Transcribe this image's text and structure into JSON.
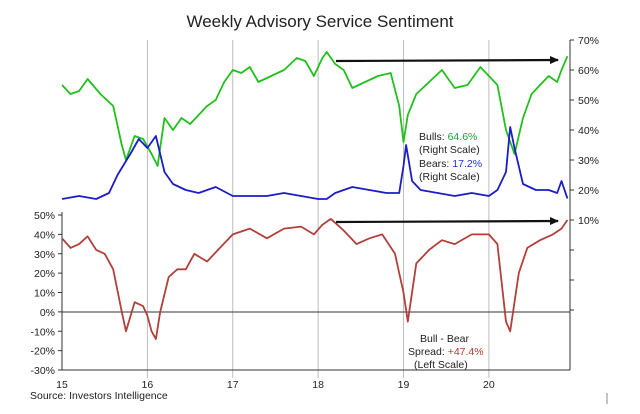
{
  "chart_data": {
    "type": "line",
    "title": "Weekly Advisory Service Sentiment",
    "source": "Source: Investors Intelligence",
    "x_tick_labels": [
      "15",
      "16",
      "17",
      "18",
      "19",
      "20"
    ],
    "x_tick_values": [
      2015,
      2016,
      2017,
      2018,
      2019,
      2020
    ],
    "xlim": [
      2015,
      2020.95
    ],
    "grid": "vertical lines at year boundaries",
    "right_axis": {
      "ylim": [
        -20,
        70
      ],
      "tick_values": [
        10,
        20,
        30,
        40,
        50,
        60,
        70
      ],
      "tick_labels": [
        "10%",
        "20%",
        "30%",
        "40%",
        "50%",
        "60%",
        "70%"
      ]
    },
    "left_axis": {
      "ylim": [
        -30,
        60
      ],
      "tick_values": [
        -30,
        -20,
        -10,
        0,
        10,
        20,
        30,
        40,
        50
      ],
      "tick_labels": [
        "-30%",
        "-20%",
        "-10%",
        "0%",
        "10%",
        "20%",
        "30%",
        "40%",
        "50%"
      ]
    },
    "series": [
      {
        "key": "bulls",
        "axis": "right",
        "color": "#22c01e",
        "x": [
          2015.0,
          2015.1,
          2015.2,
          2015.3,
          2015.45,
          2015.6,
          2015.7,
          2015.75,
          2015.85,
          2015.95,
          2016.05,
          2016.12,
          2016.2,
          2016.3,
          2016.4,
          2016.5,
          2016.6,
          2016.7,
          2016.8,
          2016.9,
          2017.0,
          2017.1,
          2017.2,
          2017.3,
          2017.45,
          2017.6,
          2017.75,
          2017.85,
          2017.95,
          2018.05,
          2018.1,
          2018.2,
          2018.3,
          2018.4,
          2018.55,
          2018.7,
          2018.85,
          2018.95,
          2019.0,
          2019.05,
          2019.15,
          2019.3,
          2019.45,
          2019.6,
          2019.75,
          2019.9,
          2020.0,
          2020.1,
          2020.2,
          2020.3,
          2020.4,
          2020.5,
          2020.6,
          2020.7,
          2020.8,
          2020.85,
          2020.92
        ],
        "values": [
          55,
          52,
          53,
          57,
          52,
          48,
          35,
          30,
          38,
          37,
          32,
          28,
          44,
          40,
          44,
          42,
          45,
          48,
          50,
          56,
          60,
          59,
          61,
          56,
          58,
          60,
          64,
          63,
          58,
          64,
          66,
          62,
          60,
          54,
          56,
          58,
          59,
          48,
          36,
          45,
          52,
          56,
          60,
          54,
          55,
          61,
          58,
          55,
          40,
          32,
          44,
          52,
          55,
          58,
          56,
          60,
          64.6
        ]
      },
      {
        "key": "bears",
        "axis": "right",
        "color": "#1c1cc8",
        "x": [
          2015.0,
          2015.2,
          2015.4,
          2015.55,
          2015.65,
          2015.8,
          2015.9,
          2016.0,
          2016.1,
          2016.2,
          2016.3,
          2016.45,
          2016.6,
          2016.8,
          2017.0,
          2017.2,
          2017.4,
          2017.6,
          2017.8,
          2018.0,
          2018.1,
          2018.2,
          2018.3,
          2018.4,
          2018.6,
          2018.8,
          2018.95,
          2019.0,
          2019.03,
          2019.1,
          2019.2,
          2019.4,
          2019.6,
          2019.8,
          2020.0,
          2020.1,
          2020.2,
          2020.25,
          2020.3,
          2020.4,
          2020.55,
          2020.7,
          2020.8,
          2020.85,
          2020.92
        ],
        "values": [
          17,
          18,
          17,
          19,
          25,
          32,
          37,
          34,
          38,
          26,
          22,
          20,
          19,
          21,
          18,
          18,
          18,
          19,
          18,
          17,
          17,
          19,
          20,
          21,
          20,
          19,
          19,
          28,
          35,
          23,
          20,
          19,
          18,
          19,
          18,
          20,
          26,
          41,
          34,
          22,
          20,
          20,
          19,
          23,
          17.2
        ]
      },
      {
        "key": "spread",
        "axis": "left",
        "color": "#b2403a",
        "x": [
          2015.0,
          2015.1,
          2015.2,
          2015.3,
          2015.4,
          2015.5,
          2015.6,
          2015.7,
          2015.75,
          2015.85,
          2015.95,
          2016.0,
          2016.05,
          2016.1,
          2016.15,
          2016.25,
          2016.35,
          2016.45,
          2016.55,
          2016.7,
          2016.85,
          2017.0,
          2017.2,
          2017.4,
          2017.6,
          2017.8,
          2017.95,
          2018.05,
          2018.15,
          2018.3,
          2018.45,
          2018.6,
          2018.75,
          2018.9,
          2018.95,
          2019.0,
          2019.05,
          2019.15,
          2019.3,
          2019.45,
          2019.6,
          2019.8,
          2020.0,
          2020.1,
          2020.15,
          2020.2,
          2020.25,
          2020.35,
          2020.45,
          2020.6,
          2020.75,
          2020.85,
          2020.92
        ],
        "values": [
          38,
          33,
          35,
          39,
          32,
          30,
          22,
          0,
          -10,
          5,
          3,
          -2,
          -10,
          -14,
          0,
          18,
          22,
          22,
          30,
          26,
          33,
          40,
          43,
          38,
          43,
          44,
          40,
          45,
          48,
          42,
          35,
          38,
          40,
          30,
          20,
          10,
          -5,
          25,
          32,
          37,
          35,
          40,
          40,
          35,
          15,
          -5,
          -10,
          20,
          33,
          37,
          40,
          43,
          47.4
        ]
      }
    ],
    "annotations": {
      "bulls": {
        "label": "Bulls: ",
        "value": "64.6%",
        "note": "(Right Scale)"
      },
      "bears": {
        "label": "Bears: ",
        "value": "17.2%",
        "note": "(Right Scale)"
      },
      "spread": {
        "label": "Bull - Bear",
        "label2": "Spread: ",
        "value": "+47.4%",
        "note": "(Left Scale)"
      }
    },
    "colors": {
      "bulls": "#22c01e",
      "bears": "#1c1cc8",
      "spread": "#b2403a",
      "bulls_value": "#1a9e3a",
      "bears_value": "#2233cc",
      "spread_value": "#b03a2e"
    }
  }
}
